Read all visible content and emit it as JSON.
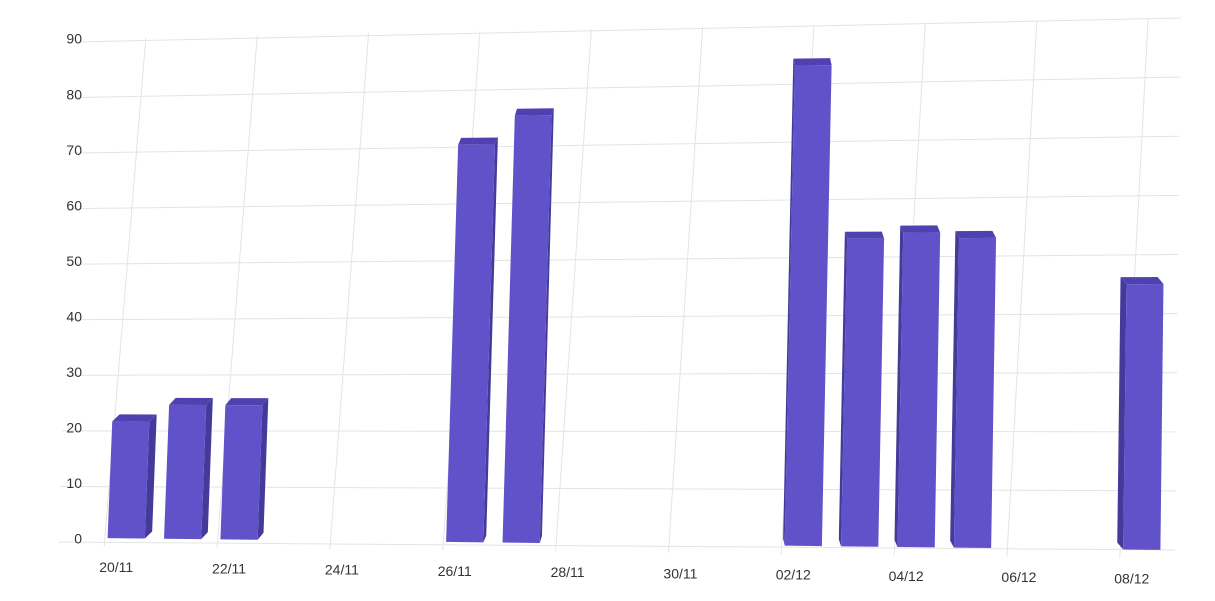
{
  "chart_data": {
    "type": "bar3d",
    "categories": [
      "20/11",
      null,
      "22/11",
      null,
      "24/11",
      null,
      "26/11",
      null,
      "28/11",
      null,
      "30/11",
      null,
      "02/12",
      null,
      "04/12",
      null,
      "06/12",
      null,
      "08/12"
    ],
    "values": [
      21,
      24,
      24,
      null,
      null,
      null,
      70,
      75,
      null,
      null,
      null,
      null,
      83,
      53,
      54,
      53,
      null,
      null,
      45
    ],
    "color": "#6152c9",
    "ylim": [
      0,
      90
    ],
    "yticks": [
      0,
      10,
      20,
      30,
      40,
      50,
      60,
      70,
      80,
      90
    ],
    "grid": true
  }
}
